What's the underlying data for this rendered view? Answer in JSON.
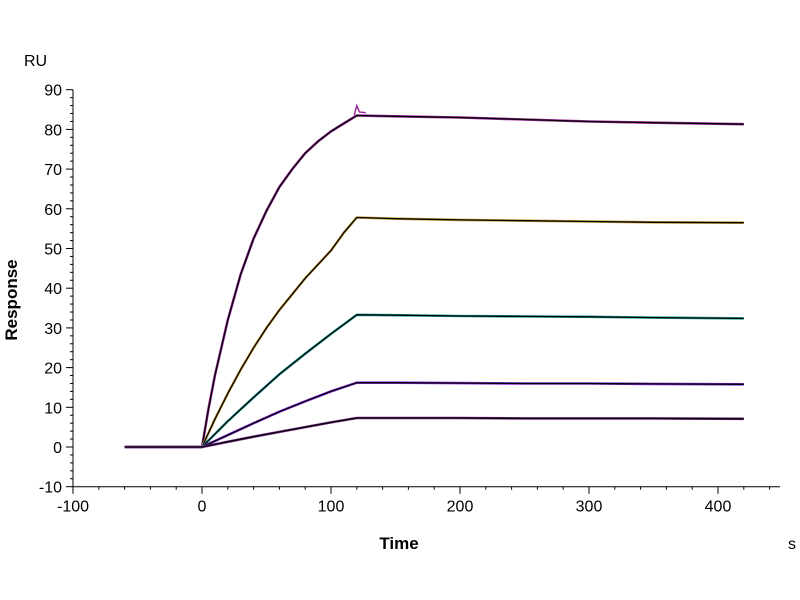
{
  "chart_data": {
    "type": "line",
    "title": "",
    "xlabel": "Time",
    "ylabel": "Response",
    "x_unit": "s",
    "y_unit": "RU",
    "xlim": [
      -100,
      450
    ],
    "ylim": [
      -10,
      90
    ],
    "x_ticks": [
      -100,
      0,
      100,
      200,
      300,
      400
    ],
    "y_ticks": [
      -10,
      0,
      10,
      20,
      30,
      40,
      50,
      60,
      70,
      80,
      90
    ],
    "grid": false,
    "legend": "none",
    "series": [
      {
        "color": "#9b2d9b",
        "fit_color": "#000000",
        "x": [
          -60,
          0,
          5,
          10,
          20,
          30,
          40,
          50,
          60,
          70,
          80,
          90,
          100,
          110,
          120,
          150,
          200,
          250,
          300,
          350,
          420
        ],
        "y": [
          0,
          0,
          9.5,
          18,
          32,
          43.5,
          52.5,
          59.5,
          65.5,
          70,
          74,
          77,
          79.5,
          81.5,
          83.5,
          83.3,
          83,
          82.5,
          82,
          81.7,
          81.3
        ]
      },
      {
        "color": "#c8a040",
        "fit_color": "#000000",
        "x": [
          -60,
          0,
          10,
          20,
          30,
          40,
          50,
          60,
          70,
          80,
          90,
          100,
          110,
          120,
          150,
          200,
          250,
          300,
          350,
          420
        ],
        "y": [
          0,
          0,
          7,
          13.5,
          19.5,
          25,
          30,
          34.5,
          38.5,
          42.5,
          46,
          49.5,
          54,
          57.8,
          57.5,
          57.2,
          57,
          56.8,
          56.6,
          56.5
        ]
      },
      {
        "color": "#2aa6a0",
        "fit_color": "#000000",
        "x": [
          -60,
          0,
          20,
          40,
          60,
          80,
          100,
          120,
          150,
          200,
          250,
          300,
          350,
          420
        ],
        "y": [
          0,
          0,
          6.5,
          12.5,
          18.3,
          23.5,
          28.5,
          33.3,
          33.2,
          33,
          32.9,
          32.8,
          32.6,
          32.4
        ]
      },
      {
        "color": "#8a2be2",
        "fit_color": "#000000",
        "x": [
          -60,
          0,
          20,
          40,
          60,
          80,
          100,
          120,
          150,
          200,
          250,
          300,
          350,
          420
        ],
        "y": [
          0,
          0,
          3,
          6,
          8.9,
          11.5,
          14,
          16.2,
          16.2,
          16.1,
          16,
          16,
          15.9,
          15.8
        ]
      },
      {
        "color": "#7a2a8a",
        "fit_color": "#000000",
        "x": [
          -60,
          0,
          20,
          40,
          60,
          80,
          100,
          120,
          150,
          200,
          250,
          300,
          350,
          420
        ],
        "y": [
          0,
          0,
          1.3,
          2.6,
          3.8,
          5,
          6.2,
          7.3,
          7.3,
          7.3,
          7.2,
          7.2,
          7.2,
          7.1
        ]
      }
    ]
  }
}
